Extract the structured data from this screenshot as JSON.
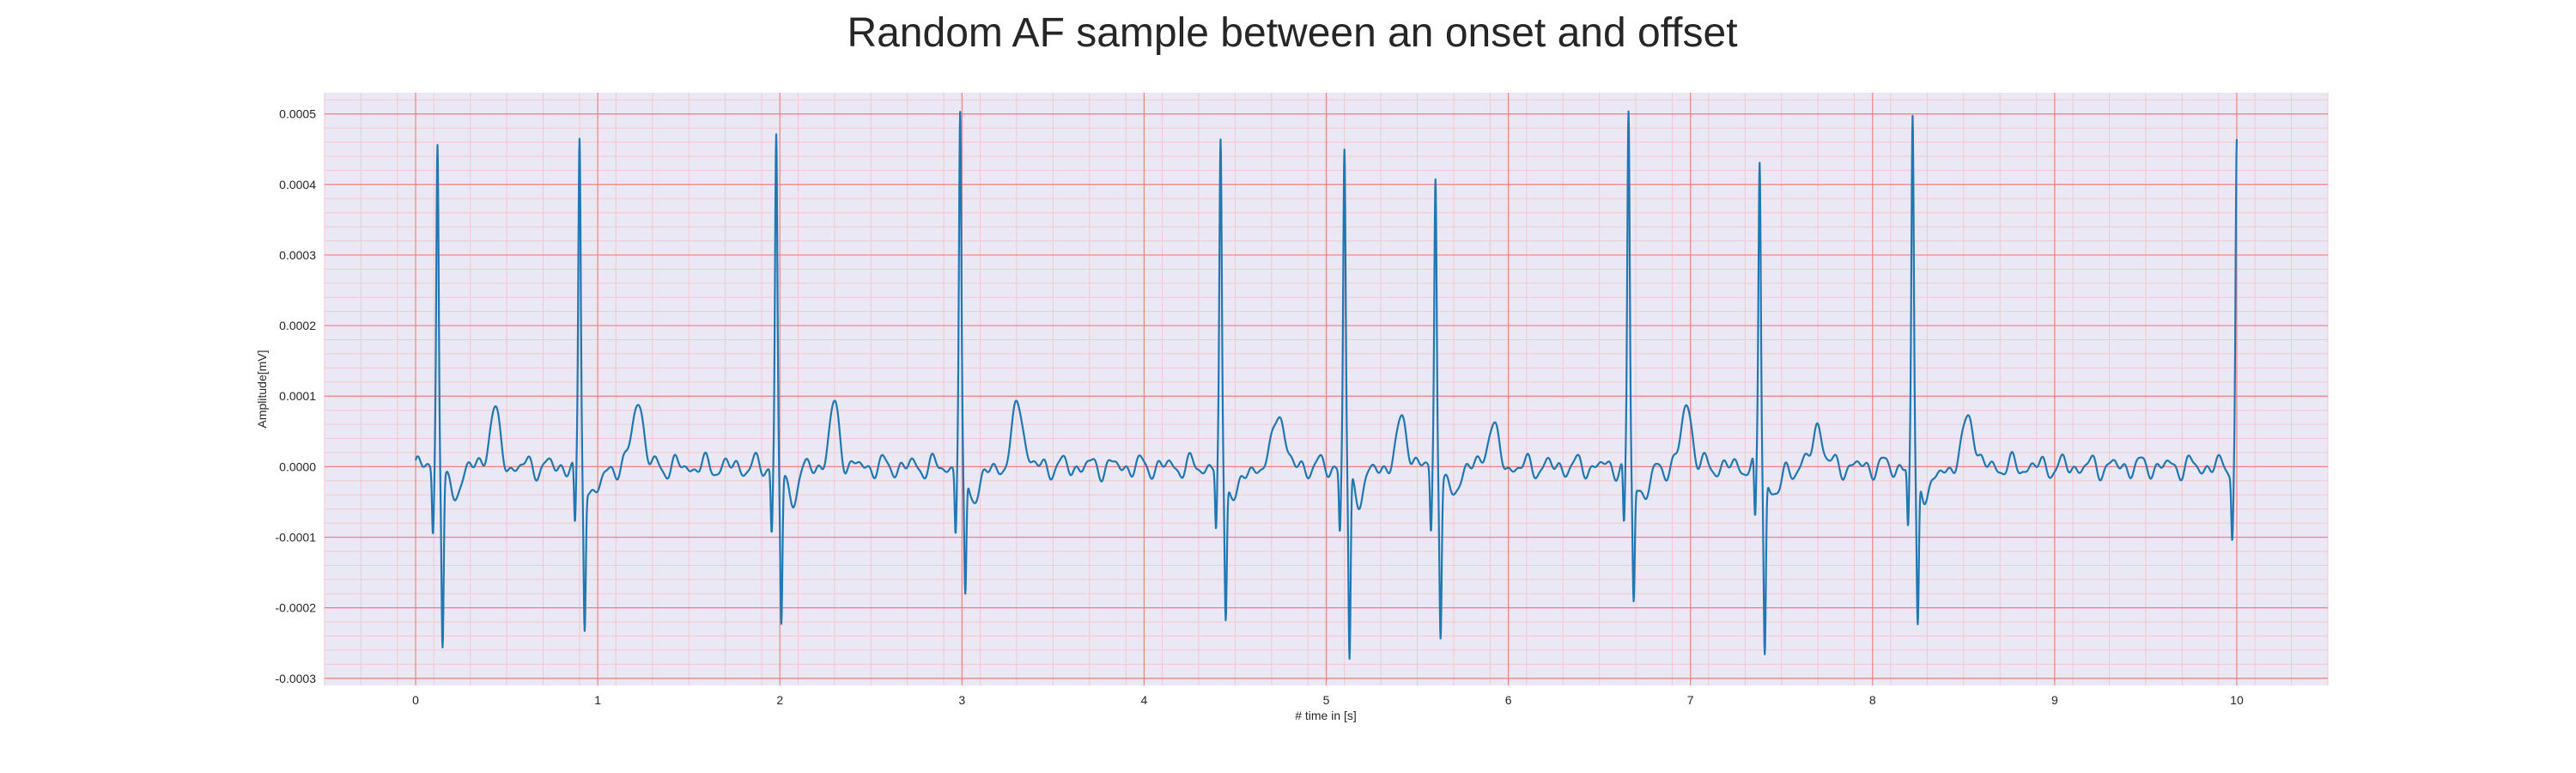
{
  "chart_data": {
    "type": "line",
    "title": "Random AF sample between an onset and offset",
    "xlabel": "# time in [s]",
    "ylabel": "Amplitude[mV]",
    "xlim": [
      -0.5,
      10.5
    ],
    "ylim": [
      -0.00031,
      0.00053
    ],
    "xticks": [
      0,
      1,
      2,
      3,
      4,
      5,
      6,
      7,
      8,
      9,
      10
    ],
    "yticks": [
      -0.0003,
      -0.0002,
      -0.0001,
      0.0,
      0.0001,
      0.0002,
      0.0003,
      0.0004,
      0.0005
    ],
    "ytick_labels": [
      "-0.0003",
      "-0.0002",
      "-0.0001",
      "0.0000",
      "0.0001",
      "0.0002",
      "0.0003",
      "0.0004",
      "0.0005"
    ],
    "grid": true,
    "minor_grid": true,
    "legend": "none",
    "beats": [
      {
        "t": 0.12,
        "peak": 0.000465,
        "trough": -0.00024
      },
      {
        "t": 0.9,
        "peak": 0.000455,
        "trough": -0.00021
      },
      {
        "t": 1.98,
        "peak": 0.00047,
        "trough": -0.000215
      },
      {
        "t": 2.99,
        "peak": 0.000495,
        "trough": -0.00018
      },
      {
        "t": 4.42,
        "peak": 0.00045,
        "trough": -0.0002
      },
      {
        "t": 5.1,
        "peak": 0.000445,
        "trough": -0.00027
      },
      {
        "t": 5.6,
        "peak": 0.000415,
        "trough": -0.00022
      },
      {
        "t": 6.66,
        "peak": 0.000495,
        "trough": -0.000175
      },
      {
        "t": 7.38,
        "peak": 0.000435,
        "trough": -0.00025
      },
      {
        "t": 8.22,
        "peak": 0.00049,
        "trough": -0.000215
      },
      {
        "t": 10.0,
        "peak": 0.000455,
        "trough": null
      }
    ],
    "t_waves": [
      {
        "t": 0.43,
        "amp": 8e-05
      },
      {
        "t": 1.22,
        "amp": 0.0001
      },
      {
        "t": 2.3,
        "amp": 8.2e-05
      },
      {
        "t": 3.31,
        "amp": 9.5e-05
      },
      {
        "t": 4.74,
        "amp": 8.5e-05
      },
      {
        "t": 5.42,
        "amp": 6.8e-05
      },
      {
        "t": 5.91,
        "amp": 6.2e-05
      },
      {
        "t": 6.98,
        "amp": 9e-05
      },
      {
        "t": 7.7,
        "amp": 6e-05
      },
      {
        "t": 8.53,
        "amp": 7.8e-05
      }
    ],
    "baseline": 0.0,
    "colors": {
      "line": "#1f77b4",
      "plot_bg": "#eae8f4",
      "major_grid": "#f08080",
      "minor_grid": "#f4c7cc",
      "text": "#262626"
    }
  }
}
